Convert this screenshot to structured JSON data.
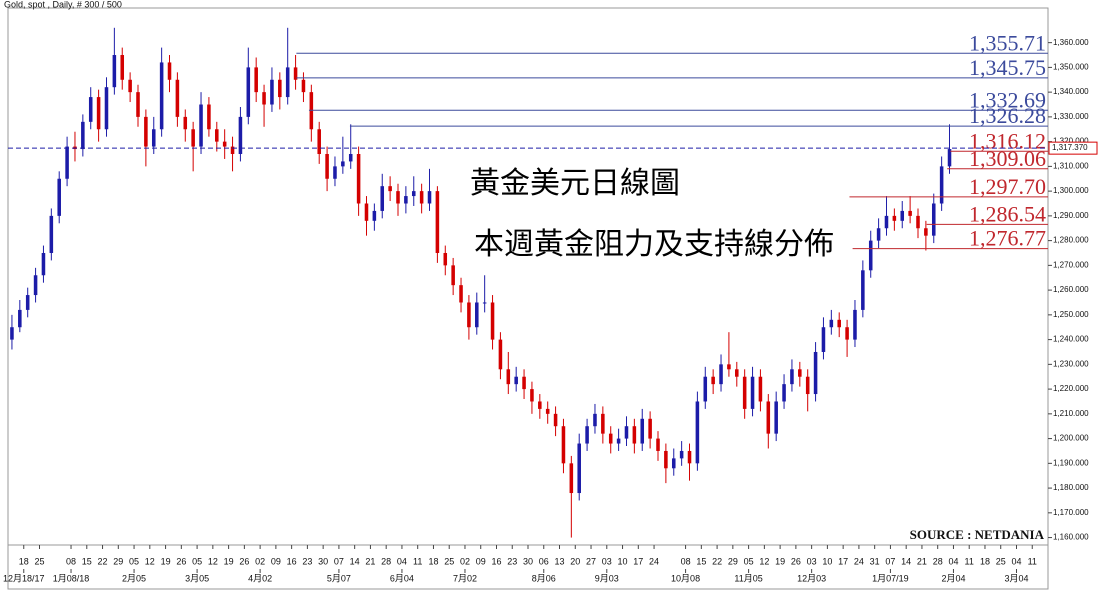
{
  "chart_data": {
    "type": "candlestick",
    "title": "Gold, spot , Daily, # 300 / 500",
    "annotations": [
      "黃金美元日線圖",
      "本週黃金阻力及支持線分佈"
    ],
    "source": "SOURCE : NETDANIA",
    "up_color": "#1c1ca8",
    "down_color": "#d40000",
    "xlim": [
      -1,
      65
    ],
    "ylim": [
      1157,
      1374
    ],
    "yticks": [
      {
        "value": 1160,
        "label": "1,160.000"
      },
      {
        "value": 1170,
        "label": "1,170.000"
      },
      {
        "value": 1180,
        "label": "1,180.000"
      },
      {
        "value": 1190,
        "label": "1,190.000"
      },
      {
        "value": 1200,
        "label": "1,200.000"
      },
      {
        "value": 1210,
        "label": "1,210.000"
      },
      {
        "value": 1220,
        "label": "1,220.000"
      },
      {
        "value": 1230,
        "label": "1,230.000"
      },
      {
        "value": 1240,
        "label": "1,240.000"
      },
      {
        "value": 1250,
        "label": "1,250.000"
      },
      {
        "value": 1260,
        "label": "1,260.000"
      },
      {
        "value": 1270,
        "label": "1,270.000"
      },
      {
        "value": 1280,
        "label": "1,280.000"
      },
      {
        "value": 1290,
        "label": "1,290.000"
      },
      {
        "value": 1300,
        "label": "1,300.000"
      },
      {
        "value": 1310,
        "label": "1,310.000"
      },
      {
        "value": 1320,
        "label": "1,320.000"
      },
      {
        "value": 1330,
        "label": "1,330.000"
      },
      {
        "value": 1340,
        "label": "1,340.000"
      },
      {
        "value": 1350,
        "label": "1,350.000"
      },
      {
        "value": 1360,
        "label": "1,360.000"
      }
    ],
    "xticks": [
      {
        "value": 0,
        "label": "18"
      },
      {
        "value": 1,
        "label": "25"
      },
      {
        "value": 3,
        "label": "08"
      },
      {
        "value": 4,
        "label": "15"
      },
      {
        "value": 5,
        "label": "22"
      },
      {
        "value": 6,
        "label": "29"
      },
      {
        "value": 7,
        "label": "05"
      },
      {
        "value": 8,
        "label": "12"
      },
      {
        "value": 9,
        "label": "19"
      },
      {
        "value": 10,
        "label": "26"
      },
      {
        "value": 11,
        "label": "05"
      },
      {
        "value": 12,
        "label": "12"
      },
      {
        "value": 13,
        "label": "19"
      },
      {
        "value": 14,
        "label": "26"
      },
      {
        "value": 15,
        "label": "02"
      },
      {
        "value": 16,
        "label": "09"
      },
      {
        "value": 17,
        "label": "16"
      },
      {
        "value": 18,
        "label": "23"
      },
      {
        "value": 19,
        "label": "30"
      },
      {
        "value": 20,
        "label": "07"
      },
      {
        "value": 21,
        "label": "14"
      },
      {
        "value": 22,
        "label": "21"
      },
      {
        "value": 23,
        "label": "28"
      },
      {
        "value": 24,
        "label": "04"
      },
      {
        "value": 25,
        "label": "11"
      },
      {
        "value": 26,
        "label": "18"
      },
      {
        "value": 27,
        "label": "25"
      },
      {
        "value": 28,
        "label": "02"
      },
      {
        "value": 29,
        "label": "09"
      },
      {
        "value": 30,
        "label": "16"
      },
      {
        "value": 31,
        "label": "23"
      },
      {
        "value": 32,
        "label": "30"
      },
      {
        "value": 33,
        "label": "06"
      },
      {
        "value": 34,
        "label": "13"
      },
      {
        "value": 35,
        "label": "20"
      },
      {
        "value": 36,
        "label": "27"
      },
      {
        "value": 37,
        "label": "03"
      },
      {
        "value": 38,
        "label": "10"
      },
      {
        "value": 39,
        "label": "17"
      },
      {
        "value": 40,
        "label": "24"
      },
      {
        "value": 42,
        "label": "08"
      },
      {
        "value": 43,
        "label": "15"
      },
      {
        "value": 44,
        "label": "22"
      },
      {
        "value": 45,
        "label": "29"
      },
      {
        "value": 46,
        "label": "05"
      },
      {
        "value": 47,
        "label": "12"
      },
      {
        "value": 48,
        "label": "19"
      },
      {
        "value": 49,
        "label": "26"
      },
      {
        "value": 50,
        "label": "03"
      },
      {
        "value": 51,
        "label": "10"
      },
      {
        "value": 52,
        "label": "17"
      },
      {
        "value": 53,
        "label": "24"
      },
      {
        "value": 54,
        "label": "31"
      },
      {
        "value": 55,
        "label": "07"
      },
      {
        "value": 56,
        "label": "14"
      },
      {
        "value": 57,
        "label": "21"
      },
      {
        "value": 58,
        "label": "28"
      },
      {
        "value": 59,
        "label": "04"
      },
      {
        "value": 60,
        "label": "11"
      },
      {
        "value": 61,
        "label": "18"
      },
      {
        "value": 62,
        "label": "25"
      },
      {
        "value": 63,
        "label": "04"
      },
      {
        "value": 64,
        "label": "11"
      }
    ],
    "xticks_months": [
      {
        "value": 0,
        "label": "12月18/17"
      },
      {
        "value": 3,
        "label": "1月08/18"
      },
      {
        "value": 7,
        "label": "2月05"
      },
      {
        "value": 11,
        "label": "3月05"
      },
      {
        "value": 15,
        "label": "4月02"
      },
      {
        "value": 20,
        "label": "5月07"
      },
      {
        "value": 24,
        "label": "6月04"
      },
      {
        "value": 28,
        "label": "7月02"
      },
      {
        "value": 33,
        "label": "8月06"
      },
      {
        "value": 37,
        "label": "9月03"
      },
      {
        "value": 42,
        "label": "10月08"
      },
      {
        "value": 46,
        "label": "11月05"
      },
      {
        "value": 50,
        "label": "12月03"
      },
      {
        "value": 55,
        "label": "1月07/19"
      },
      {
        "value": 59,
        "label": "2月04"
      },
      {
        "value": 63,
        "label": "3月04"
      }
    ],
    "current_price": {
      "value": 1317.37,
      "label": "1,317.370"
    },
    "levels": [
      {
        "value": 1355.71,
        "label": "1,355.71",
        "color": "#3b4a9c",
        "x_start": 17.3
      },
      {
        "value": 1345.75,
        "label": "1,345.75",
        "color": "#3b4a9c",
        "x_start": 17.3
      },
      {
        "value": 1332.69,
        "label": "1,332.69",
        "color": "#3b4a9c",
        "x_start": 18.1
      },
      {
        "value": 1326.28,
        "label": "1,326.28",
        "color": "#3b4a9c",
        "x_start": 20.7
      },
      {
        "value": 1316.12,
        "label": "1,316.12",
        "color": "#c0272d",
        "x_start": 58.8
      },
      {
        "value": 1309.06,
        "label": "1,309.06",
        "color": "#c0272d",
        "x_start": 58.6
      },
      {
        "value": 1297.7,
        "label": "1,297.70",
        "color": "#c0272d",
        "x_start": 52.4
      },
      {
        "value": 1286.54,
        "label": "1,286.54",
        "color": "#c0272d",
        "x_start": 57.3
      },
      {
        "value": 1276.77,
        "label": "1,276.77",
        "color": "#c0272d",
        "x_start": 52.6
      }
    ],
    "x": [
      -0.75,
      -0.25,
      0.25,
      0.75,
      1.25,
      1.75,
      2.25,
      2.75,
      3.25,
      3.75,
      4.25,
      4.75,
      5.25,
      5.75,
      6.25,
      6.75,
      7.25,
      7.75,
      8.25,
      8.75,
      9.25,
      9.75,
      10.25,
      10.75,
      11.25,
      11.75,
      12.25,
      12.75,
      13.25,
      13.75,
      14.25,
      14.75,
      15.25,
      15.75,
      16.25,
      16.75,
      17.25,
      17.75,
      18.25,
      18.75,
      19.25,
      19.75,
      20.25,
      20.75,
      21.25,
      21.75,
      22.25,
      22.75,
      23.25,
      23.75,
      24.25,
      24.75,
      25.25,
      25.75,
      26.25,
      26.75,
      27.25,
      27.75,
      28.25,
      28.75,
      29.25,
      29.75,
      30.25,
      30.75,
      31.25,
      31.75,
      32.25,
      32.75,
      33.25,
      33.75,
      34.25,
      34.75,
      35.25,
      35.75,
      36.25,
      36.75,
      37.25,
      37.75,
      38.25,
      38.75,
      39.25,
      39.75,
      40.25,
      40.75,
      41.25,
      41.75,
      42.25,
      42.75,
      43.25,
      43.75,
      44.25,
      44.75,
      45.25,
      45.75,
      46.25,
      46.75,
      47.25,
      47.75,
      48.25,
      48.75,
      49.25,
      49.75,
      50.25,
      50.75,
      51.25,
      51.75,
      52.25,
      52.75,
      53.25,
      53.75,
      54.25,
      54.75,
      55.25,
      55.75,
      56.25,
      56.75,
      57.25,
      57.75,
      58.25,
      58.75
    ],
    "ohlc": [
      [
        1240,
        1250,
        1236,
        1245
      ],
      [
        1245,
        1256,
        1243,
        1252
      ],
      [
        1252,
        1261,
        1249,
        1258
      ],
      [
        1258,
        1269,
        1255,
        1266
      ],
      [
        1266,
        1278,
        1263,
        1275
      ],
      [
        1275,
        1293,
        1272,
        1290
      ],
      [
        1290,
        1308,
        1287,
        1305
      ],
      [
        1305,
        1322,
        1302,
        1318
      ],
      [
        1318,
        1324,
        1312,
        1317
      ],
      [
        1317,
        1331,
        1314,
        1328
      ],
      [
        1328,
        1342,
        1325,
        1338
      ],
      [
        1338,
        1341,
        1320,
        1325
      ],
      [
        1325,
        1346,
        1322,
        1342
      ],
      [
        1342,
        1366,
        1339,
        1355
      ],
      [
        1355,
        1358,
        1341,
        1345
      ],
      [
        1345,
        1348,
        1336,
        1340
      ],
      [
        1340,
        1343,
        1326,
        1330
      ],
      [
        1330,
        1333,
        1310,
        1318
      ],
      [
        1318,
        1330,
        1315,
        1325
      ],
      [
        1325,
        1358,
        1322,
        1352
      ],
      [
        1352,
        1355,
        1340,
        1345
      ],
      [
        1345,
        1348,
        1326,
        1330
      ],
      [
        1330,
        1333,
        1320,
        1325
      ],
      [
        1325,
        1328,
        1308,
        1318
      ],
      [
        1318,
        1340,
        1315,
        1335
      ],
      [
        1335,
        1338,
        1322,
        1325
      ],
      [
        1325,
        1328,
        1316,
        1320
      ],
      [
        1320,
        1325,
        1313,
        1318
      ],
      [
        1318,
        1322,
        1308,
        1315
      ],
      [
        1315,
        1334,
        1312,
        1330
      ],
      [
        1330,
        1358,
        1327,
        1350
      ],
      [
        1350,
        1354,
        1336,
        1340
      ],
      [
        1340,
        1343,
        1326,
        1335
      ],
      [
        1335,
        1350,
        1332,
        1345
      ],
      [
        1345,
        1348,
        1333,
        1338
      ],
      [
        1338,
        1366,
        1335,
        1350
      ],
      [
        1350,
        1355,
        1341,
        1345
      ],
      [
        1345,
        1348,
        1336,
        1340
      ],
      [
        1340,
        1343,
        1320,
        1325
      ],
      [
        1325,
        1328,
        1311,
        1315
      ],
      [
        1315,
        1318,
        1300,
        1305
      ],
      [
        1305,
        1314,
        1302,
        1310
      ],
      [
        1310,
        1322,
        1307,
        1312
      ],
      [
        1312,
        1327,
        1309,
        1315
      ],
      [
        1315,
        1318,
        1290,
        1295
      ],
      [
        1295,
        1298,
        1282,
        1288
      ],
      [
        1288,
        1295,
        1284,
        1292
      ],
      [
        1292,
        1307,
        1289,
        1302
      ],
      [
        1302,
        1306,
        1296,
        1300
      ],
      [
        1300,
        1303,
        1290,
        1295
      ],
      [
        1295,
        1302,
        1291,
        1298
      ],
      [
        1298,
        1306,
        1294,
        1300
      ],
      [
        1300,
        1303,
        1291,
        1295
      ],
      [
        1295,
        1309,
        1292,
        1300
      ],
      [
        1300,
        1302,
        1271,
        1275
      ],
      [
        1275,
        1278,
        1266,
        1270
      ],
      [
        1270,
        1273,
        1258,
        1262
      ],
      [
        1262,
        1265,
        1251,
        1255
      ],
      [
        1255,
        1258,
        1240,
        1245
      ],
      [
        1245,
        1259,
        1242,
        1255
      ],
      [
        1255,
        1266,
        1251,
        1255
      ],
      [
        1255,
        1258,
        1236,
        1240
      ],
      [
        1240,
        1243,
        1224,
        1228
      ],
      [
        1228,
        1235,
        1218,
        1222
      ],
      [
        1222,
        1229,
        1219,
        1225
      ],
      [
        1225,
        1228,
        1216,
        1220
      ],
      [
        1220,
        1223,
        1210,
        1215
      ],
      [
        1215,
        1218,
        1208,
        1212
      ],
      [
        1212,
        1215,
        1206,
        1210
      ],
      [
        1210,
        1213,
        1201,
        1205
      ],
      [
        1205,
        1208,
        1186,
        1190
      ],
      [
        1190,
        1193,
        1160,
        1178
      ],
      [
        1178,
        1202,
        1175,
        1198
      ],
      [
        1198,
        1208,
        1195,
        1205
      ],
      [
        1205,
        1214,
        1202,
        1210
      ],
      [
        1210,
        1213,
        1198,
        1202
      ],
      [
        1202,
        1205,
        1194,
        1198
      ],
      [
        1198,
        1204,
        1195,
        1200
      ],
      [
        1200,
        1209,
        1197,
        1205
      ],
      [
        1205,
        1208,
        1194,
        1198
      ],
      [
        1198,
        1212,
        1195,
        1208
      ],
      [
        1208,
        1211,
        1196,
        1200
      ],
      [
        1200,
        1203,
        1191,
        1195
      ],
      [
        1195,
        1198,
        1182,
        1188
      ],
      [
        1188,
        1196,
        1185,
        1192
      ],
      [
        1192,
        1199,
        1189,
        1195
      ],
      [
        1195,
        1198,
        1183,
        1190
      ],
      [
        1190,
        1219,
        1187,
        1215
      ],
      [
        1215,
        1229,
        1212,
        1225
      ],
      [
        1225,
        1228,
        1218,
        1222
      ],
      [
        1222,
        1234,
        1219,
        1230
      ],
      [
        1230,
        1243,
        1225,
        1228
      ],
      [
        1228,
        1231,
        1221,
        1225
      ],
      [
        1225,
        1228,
        1208,
        1212
      ],
      [
        1212,
        1229,
        1209,
        1225
      ],
      [
        1225,
        1228,
        1211,
        1215
      ],
      [
        1215,
        1218,
        1196,
        1202
      ],
      [
        1202,
        1219,
        1199,
        1215
      ],
      [
        1215,
        1226,
        1212,
        1222
      ],
      [
        1222,
        1232,
        1219,
        1228
      ],
      [
        1228,
        1231,
        1221,
        1225
      ],
      [
        1225,
        1228,
        1211,
        1218
      ],
      [
        1218,
        1239,
        1215,
        1235
      ],
      [
        1235,
        1249,
        1232,
        1245
      ],
      [
        1245,
        1252,
        1242,
        1248
      ],
      [
        1248,
        1251,
        1241,
        1245
      ],
      [
        1245,
        1248,
        1233,
        1240
      ],
      [
        1240,
        1256,
        1237,
        1252
      ],
      [
        1252,
        1272,
        1249,
        1268
      ],
      [
        1268,
        1284,
        1265,
        1280
      ],
      [
        1280,
        1289,
        1277,
        1285
      ],
      [
        1285,
        1298,
        1282,
        1290
      ],
      [
        1290,
        1293,
        1284,
        1288
      ],
      [
        1288,
        1296,
        1285,
        1292
      ],
      [
        1292,
        1298,
        1287,
        1290
      ],
      [
        1290,
        1293,
        1281,
        1285
      ],
      [
        1285,
        1288,
        1276,
        1282
      ],
      [
        1282,
        1299,
        1279,
        1295
      ],
      [
        1295,
        1314,
        1292,
        1310
      ],
      [
        1310,
        1327,
        1307,
        1317
      ]
    ]
  }
}
